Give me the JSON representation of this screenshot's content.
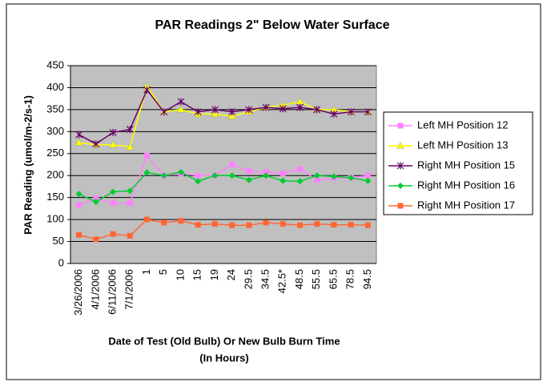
{
  "chart_data": {
    "type": "line",
    "title": "PAR Readings 2\" Below Water Surface",
    "y_label": "PAR Reading (umol/m-2/s-1)",
    "x_label": [
      "Date of Test (Old Bulb) Or New Bulb Burn Time",
      "(In Hours)"
    ],
    "categories": [
      "3/26/2006",
      "4/1/2006",
      "6/11/2006",
      "7/1/2006",
      "1",
      "5",
      "10",
      "15",
      "19",
      "24",
      "29.5",
      "34.5",
      "42.5*",
      "48.5",
      "55.5",
      "65.5",
      "78.5",
      "94.5"
    ],
    "series": [
      {
        "name": "Left MH Position 12",
        "color": "#ff80ff",
        "marker": "square",
        "values": [
          133,
          148,
          137,
          137,
          245,
          200,
          205,
          200,
          200,
          225,
          210,
          208,
          205,
          215,
          190,
          195,
          195,
          200
        ]
      },
      {
        "name": "Left MH Position 13",
        "color": "#ffff00",
        "marker": "triangle",
        "values": [
          275,
          270,
          270,
          265,
          403,
          345,
          350,
          340,
          340,
          335,
          345,
          355,
          360,
          368,
          350,
          350,
          345,
          345
        ]
      },
      {
        "name": "Right MH Position 15",
        "color": "#660066",
        "marker": "star",
        "values": [
          293,
          272,
          298,
          305,
          395,
          345,
          368,
          345,
          350,
          345,
          350,
          355,
          352,
          355,
          350,
          340,
          345,
          345
        ]
      },
      {
        "name": "Right MH Position 16",
        "color": "#00cc33",
        "marker": "diamond",
        "values": [
          158,
          140,
          163,
          165,
          207,
          200,
          208,
          187,
          200,
          200,
          190,
          200,
          188,
          187,
          200,
          198,
          195,
          188
        ]
      },
      {
        "name": "Right MH Position 17",
        "color": "#ff6633",
        "marker": "square",
        "values": [
          65,
          55,
          67,
          63,
          100,
          93,
          97,
          88,
          90,
          87,
          87,
          93,
          90,
          87,
          90,
          88,
          88,
          87
        ]
      }
    ],
    "ylim": [
      0,
      450
    ],
    "yticks": [
      0,
      50,
      100,
      150,
      200,
      250,
      300,
      350,
      400,
      450
    ],
    "grid": true,
    "legend": "right"
  }
}
